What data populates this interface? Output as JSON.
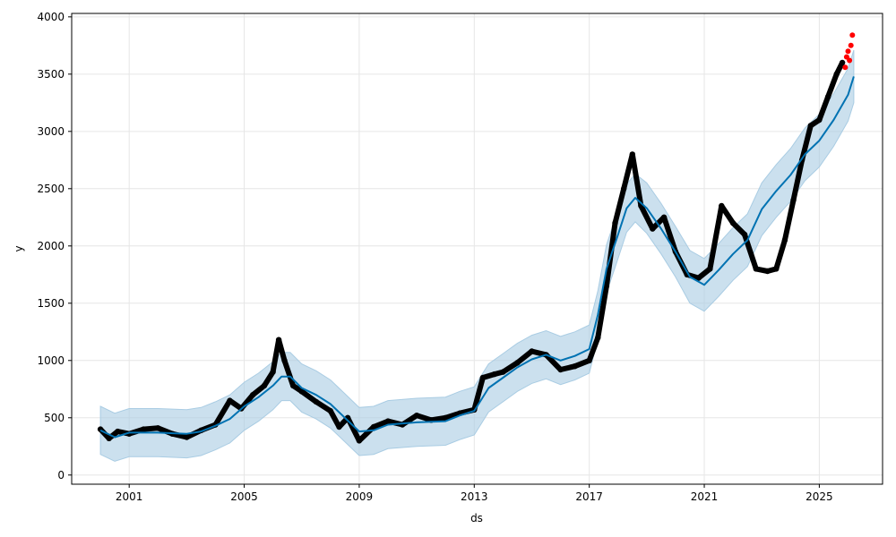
{
  "chart_data": {
    "type": "scatter",
    "title": "",
    "xlabel": "ds",
    "ylabel": "y",
    "xlim": [
      1999.0,
      2027.2
    ],
    "ylim": [
      -80,
      4030
    ],
    "grid": true,
    "x_ticks": [
      {
        "value": 2001,
        "label": "2001"
      },
      {
        "value": 2005,
        "label": "2005"
      },
      {
        "value": 2009,
        "label": "2009"
      },
      {
        "value": 2013,
        "label": "2013"
      },
      {
        "value": 2017,
        "label": "2017"
      },
      {
        "value": 2021,
        "label": "2021"
      },
      {
        "value": 2025,
        "label": "2025"
      }
    ],
    "y_ticks": [
      {
        "value": 0,
        "label": "0"
      },
      {
        "value": 500,
        "label": "500"
      },
      {
        "value": 1000,
        "label": "1000"
      },
      {
        "value": 1500,
        "label": "1500"
      },
      {
        "value": 2000,
        "label": "2000"
      },
      {
        "value": 2500,
        "label": "2500"
      },
      {
        "value": 3000,
        "label": "3000"
      },
      {
        "value": 3500,
        "label": "3500"
      },
      {
        "value": 4000,
        "label": "4000"
      }
    ],
    "colors": {
      "observed": "#000000",
      "recent": "#ff0000",
      "forecast": "#0072b2",
      "interval": "#a9cce3",
      "grid": "#e6e6e6"
    },
    "forecast": {
      "x": [
        2000.0,
        2000.5,
        2001.0,
        2002.0,
        2003.0,
        2003.5,
        2004.0,
        2004.5,
        2005.0,
        2005.5,
        2006.0,
        2006.3,
        2006.6,
        2007.0,
        2007.5,
        2008.0,
        2008.5,
        2009.0,
        2009.5,
        2010.0,
        2011.0,
        2012.0,
        2012.5,
        2013.0,
        2013.5,
        2014.0,
        2014.5,
        2015.0,
        2015.5,
        2016.0,
        2016.5,
        2017.0,
        2017.3,
        2017.6,
        2018.0,
        2018.3,
        2018.6,
        2019.0,
        2019.5,
        2020.0,
        2020.5,
        2021.0,
        2021.5,
        2022.0,
        2022.5,
        2023.0,
        2023.5,
        2024.0,
        2024.5,
        2025.0,
        2025.5,
        2026.0,
        2026.2
      ],
      "yhat": [
        390,
        330,
        370,
        370,
        360,
        380,
        430,
        490,
        600,
        680,
        780,
        860,
        860,
        760,
        700,
        620,
        500,
        380,
        390,
        440,
        460,
        470,
        520,
        560,
        760,
        850,
        940,
        1010,
        1050,
        1000,
        1040,
        1100,
        1400,
        1800,
        2100,
        2330,
        2420,
        2330,
        2150,
        1950,
        1730,
        1660,
        1790,
        1930,
        2050,
        2320,
        2480,
        2620,
        2800,
        2920,
        3100,
        3320,
        3480
      ],
      "lower": [
        180,
        120,
        160,
        160,
        150,
        170,
        220,
        280,
        390,
        470,
        570,
        650,
        650,
        550,
        490,
        410,
        290,
        170,
        180,
        230,
        250,
        260,
        310,
        350,
        550,
        640,
        730,
        800,
        840,
        790,
        830,
        890,
        1190,
        1590,
        1890,
        2120,
        2210,
        2110,
        1930,
        1730,
        1500,
        1430,
        1560,
        1700,
        1820,
        2090,
        2250,
        2390,
        2570,
        2690,
        2870,
        3090,
        3250
      ],
      "upper": [
        600,
        540,
        580,
        580,
        570,
        590,
        640,
        700,
        810,
        890,
        990,
        1070,
        1070,
        970,
        910,
        830,
        710,
        590,
        600,
        650,
        670,
        680,
        730,
        770,
        970,
        1060,
        1150,
        1220,
        1260,
        1210,
        1250,
        1310,
        1610,
        2010,
        2310,
        2540,
        2630,
        2550,
        2370,
        2170,
        1960,
        1890,
        2020,
        2160,
        2280,
        2550,
        2710,
        2850,
        3030,
        3150,
        3330,
        3550,
        3710
      ]
    },
    "observed": {
      "x": [
        2000.0,
        2000.3,
        2000.6,
        2001.0,
        2001.5,
        2002.0,
        2002.5,
        2003.0,
        2003.5,
        2004.0,
        2004.5,
        2004.9,
        2005.3,
        2005.7,
        2006.0,
        2006.2,
        2006.4,
        2006.7,
        2007.0,
        2007.5,
        2008.0,
        2008.3,
        2008.6,
        2009.0,
        2009.5,
        2010.0,
        2010.5,
        2011.0,
        2011.5,
        2012.0,
        2012.5,
        2013.0,
        2013.3,
        2013.7,
        2014.0,
        2014.5,
        2015.0,
        2015.5,
        2016.0,
        2016.5,
        2017.0,
        2017.3,
        2017.6,
        2017.9,
        2018.2,
        2018.5,
        2018.8,
        2019.2,
        2019.6,
        2020.0,
        2020.4,
        2020.8,
        2021.2,
        2021.6,
        2022.0,
        2022.4,
        2022.8,
        2023.2,
        2023.5,
        2023.8,
        2024.1,
        2024.4,
        2024.7,
        2025.0,
        2025.3,
        2025.6,
        2025.8
      ],
      "y": [
        400,
        320,
        380,
        360,
        400,
        410,
        360,
        330,
        390,
        440,
        650,
        580,
        700,
        780,
        900,
        1180,
        1000,
        780,
        730,
        640,
        560,
        420,
        500,
        300,
        420,
        470,
        440,
        520,
        480,
        500,
        540,
        570,
        850,
        880,
        900,
        980,
        1080,
        1050,
        920,
        950,
        1000,
        1200,
        1650,
        2200,
        2500,
        2800,
        2350,
        2150,
        2250,
        1950,
        1750,
        1720,
        1800,
        2350,
        2200,
        2100,
        1800,
        1780,
        1800,
        2050,
        2400,
        2750,
        3050,
        3100,
        3300,
        3500,
        3600
      ]
    },
    "recent": {
      "x": [
        2025.9,
        2025.95,
        2026.0,
        2026.05,
        2026.1,
        2026.15
      ],
      "y": [
        3560,
        3650,
        3700,
        3620,
        3750,
        3840
      ]
    }
  }
}
